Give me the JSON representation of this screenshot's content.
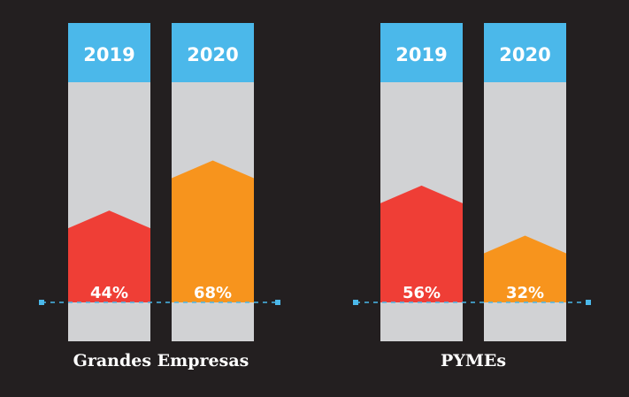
{
  "chart_data": {
    "type": "bar",
    "title": "",
    "xlabel": "",
    "ylabel": "",
    "ylim": [
      0,
      100
    ],
    "groups": [
      {
        "name": "Grandes Empresas",
        "bars": [
          {
            "year": "2019",
            "value": 44,
            "label": "44%",
            "color": "#ef3e36"
          },
          {
            "year": "2020",
            "value": 68,
            "label": "68%",
            "color": "#f7941d"
          }
        ]
      },
      {
        "name": "PYMEs",
        "bars": [
          {
            "year": "2019",
            "value": 56,
            "label": "56%",
            "color": "#ef3e36"
          },
          {
            "year": "2020",
            "value": 32,
            "label": "32%",
            "color": "#f7941d"
          }
        ]
      }
    ],
    "colors": {
      "background": "#231f20",
      "header": "#4bb8ea",
      "track": "#d1d2d4",
      "reference_line": "#4bb8ea"
    },
    "legend": "none",
    "grid": false
  }
}
